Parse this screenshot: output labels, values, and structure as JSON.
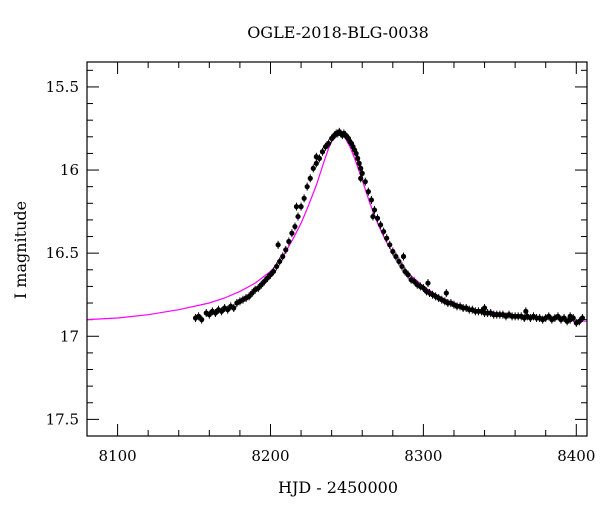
{
  "chart_data": {
    "type": "scatter",
    "title": "OGLE-2018-BLG-0038",
    "xlabel": "HJD - 2450000",
    "ylabel": "I magnitude",
    "xlim": [
      8080,
      8407
    ],
    "ylim": [
      17.6,
      15.35
    ],
    "y_inverted": true,
    "grid": false,
    "x_major_ticks": [
      8100,
      8200,
      8300,
      8400
    ],
    "x_tick_labels": [
      "8100",
      "8200",
      "8300",
      "8400"
    ],
    "x_minor_step": 20,
    "y_major_ticks": [
      15.5,
      16,
      16.5,
      17,
      17.5
    ],
    "y_tick_labels": [
      "15.5",
      "16",
      "16.5",
      "17",
      "17.5"
    ],
    "y_minor_step": 0.1,
    "series": [
      {
        "type": "scatter",
        "color": "#000000",
        "x": [
          8151,
          8153,
          8155,
          8158,
          8160,
          8162,
          8164,
          8166,
          8168,
          8170,
          8172,
          8174,
          8176,
          8178,
          8180,
          8182,
          8184,
          8186,
          8188,
          8190,
          8192,
          8194,
          8196,
          8198,
          8200,
          8202,
          8204,
          8206,
          8208,
          8210,
          8212,
          8214,
          8216,
          8218,
          8220,
          8222,
          8224,
          8226,
          8228,
          8230,
          8232,
          8234,
          8236,
          8238,
          8240,
          8241,
          8242,
          8243,
          8244,
          8245,
          8246,
          8247,
          8248,
          8249,
          8250,
          8251,
          8252,
          8253,
          8254,
          8255,
          8256,
          8257,
          8258,
          8259,
          8260,
          8262,
          8264,
          8266,
          8268,
          8270,
          8272,
          8274,
          8276,
          8278,
          8280,
          8282,
          8284,
          8286,
          8288,
          8290,
          8292,
          8294,
          8296,
          8298,
          8300,
          8302,
          8304,
          8306,
          8308,
          8310,
          8312,
          8314,
          8316,
          8318,
          8320,
          8322,
          8324,
          8326,
          8328,
          8330,
          8332,
          8334,
          8336,
          8338,
          8340,
          8342,
          8344,
          8346,
          8348,
          8350,
          8352,
          8354,
          8356,
          8358,
          8360,
          8362,
          8364,
          8366,
          8368,
          8370,
          8372,
          8374,
          8376,
          8378,
          8380,
          8382,
          8384,
          8386,
          8388,
          8390,
          8392,
          8394,
          8396,
          8398,
          8400,
          8402,
          8404,
          8205,
          8217,
          8230,
          8237,
          8259,
          8267,
          8287,
          8303,
          8315,
          8340,
          8367,
          8396
        ],
        "y": [
          16.89,
          16.88,
          16.9,
          16.86,
          16.87,
          16.85,
          16.86,
          16.84,
          16.85,
          16.83,
          16.84,
          16.82,
          16.83,
          16.8,
          16.79,
          16.78,
          16.77,
          16.76,
          16.74,
          16.72,
          16.71,
          16.69,
          16.67,
          16.65,
          16.63,
          16.61,
          16.58,
          16.55,
          16.52,
          16.48,
          16.43,
          16.38,
          16.34,
          16.28,
          16.22,
          16.17,
          16.1,
          16.05,
          15.99,
          15.96,
          15.93,
          15.89,
          15.86,
          15.84,
          15.81,
          15.8,
          15.79,
          15.78,
          15.78,
          15.77,
          15.78,
          15.79,
          15.78,
          15.79,
          15.8,
          15.81,
          15.83,
          15.84,
          15.86,
          15.88,
          15.9,
          15.93,
          15.96,
          15.99,
          16.02,
          16.07,
          16.13,
          16.18,
          16.24,
          16.29,
          16.33,
          16.37,
          16.41,
          16.45,
          16.49,
          16.52,
          16.55,
          16.58,
          16.61,
          16.63,
          16.66,
          16.67,
          16.69,
          16.7,
          16.71,
          16.73,
          16.74,
          16.75,
          16.76,
          16.77,
          16.78,
          16.79,
          16.8,
          16.8,
          16.81,
          16.82,
          16.82,
          16.83,
          16.83,
          16.84,
          16.84,
          16.85,
          16.85,
          16.85,
          16.86,
          16.86,
          16.86,
          16.87,
          16.87,
          16.87,
          16.87,
          16.88,
          16.87,
          16.88,
          16.88,
          16.88,
          16.88,
          16.89,
          16.88,
          16.89,
          16.88,
          16.89,
          16.89,
          16.9,
          16.89,
          16.88,
          16.9,
          16.89,
          16.88,
          16.9,
          16.89,
          16.91,
          16.9,
          16.89,
          16.92,
          16.91,
          16.89,
          16.45,
          16.22,
          15.92,
          15.85,
          16.05,
          16.28,
          16.52,
          16.68,
          16.74,
          16.83,
          16.85,
          16.88
        ]
      },
      {
        "type": "line",
        "color": "#ff00ff",
        "x": [
          8080,
          8100,
          8120,
          8140,
          8160,
          8170,
          8180,
          8190,
          8200,
          8205,
          8210,
          8215,
          8220,
          8225,
          8230,
          8235,
          8238,
          8241,
          8243,
          8245,
          8247,
          8249,
          8252,
          8255,
          8260,
          8265,
          8270,
          8275,
          8280,
          8290,
          8300,
          8310,
          8320,
          8330,
          8340,
          8360,
          8380,
          8407
        ],
        "y": [
          16.9,
          16.89,
          16.87,
          16.84,
          16.8,
          16.77,
          16.73,
          16.68,
          16.61,
          16.56,
          16.49,
          16.41,
          16.32,
          16.21,
          16.09,
          15.95,
          15.87,
          15.81,
          15.79,
          15.78,
          15.79,
          15.81,
          15.86,
          15.93,
          16.06,
          16.2,
          16.32,
          16.42,
          16.5,
          16.62,
          16.7,
          16.76,
          16.8,
          16.83,
          16.85,
          16.87,
          16.89,
          16.91
        ]
      }
    ]
  }
}
